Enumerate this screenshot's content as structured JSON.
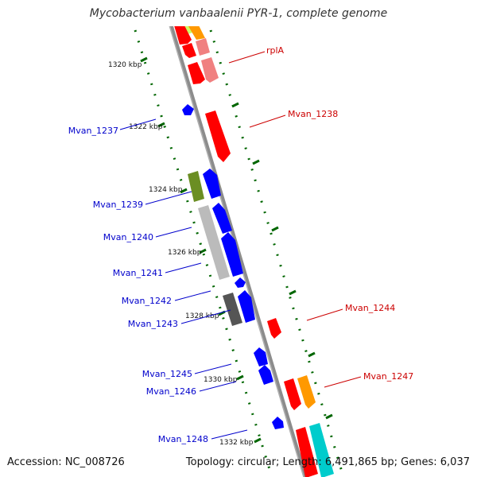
{
  "title": "Mycobacterium vanbaalenii PYR-1, complete genome",
  "accession_line": "Accession: NC_008726",
  "summary_line": "Topology: circular; Length: 6,491,865 bp; Genes: 6,037",
  "scale": {
    "ticks": [
      "1320 kbp",
      "1322 kbp",
      "1324 kbp",
      "1326 kbp",
      "1328 kbp",
      "1330 kbp",
      "1332 kbp"
    ]
  },
  "gene_labels": {
    "forward_strand": [
      "rplA",
      "Mvan_1238",
      "Mvan_1244",
      "Mvan_1247"
    ],
    "reverse_strand": [
      "Mvan_1237",
      "Mvan_1239",
      "Mvan_1240",
      "Mvan_1241",
      "Mvan_1242",
      "Mvan_1243",
      "Mvan_1245",
      "Mvan_1246",
      "Mvan_1248"
    ]
  },
  "colors": {
    "forward_label": "#cc0000",
    "reverse_label": "#0000cc",
    "red_gene": "#ff0000",
    "pink_gene": "#f08080",
    "orange_gene": "#ff9900",
    "blue_gene": "#0000ff",
    "olive_gene": "#6b8e23",
    "grey_gene": "#bbbbbb",
    "dark_grey_gene": "#555555",
    "cyan_gene": "#00cccc",
    "lime_gene": "#ccff66",
    "backbone": "#8c8c8c",
    "tick_green": "#006600"
  }
}
